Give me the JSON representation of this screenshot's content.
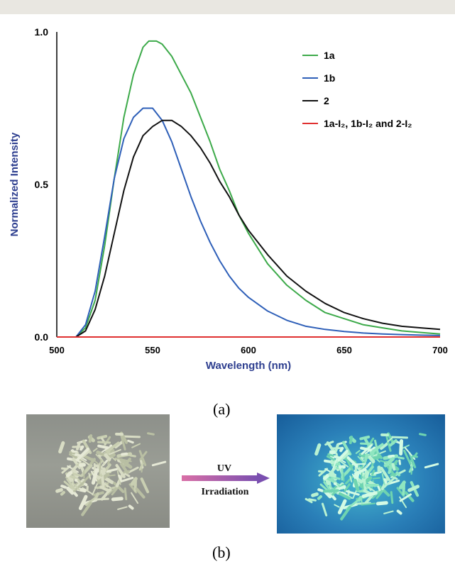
{
  "chart_data": {
    "type": "line",
    "xlabel": "Wavelength (nm)",
    "ylabel": "Normalized Intensity",
    "xlim": [
      500,
      700
    ],
    "ylim": [
      0,
      1.0
    ],
    "x_ticks": [
      "500",
      "550",
      "600",
      "650",
      "700"
    ],
    "y_ticks": [
      "0.0",
      "0.5",
      "1.0"
    ],
    "legend_position": "top-right",
    "grid": false,
    "series": [
      {
        "name": "1a",
        "color": "#3daa4a",
        "x": [
          510,
          515,
          520,
          525,
          530,
          535,
          540,
          545,
          548,
          550,
          552,
          555,
          560,
          565,
          570,
          575,
          580,
          585,
          590,
          595,
          600,
          610,
          620,
          630,
          640,
          650,
          660,
          670,
          680,
          690,
          700
        ],
        "y": [
          0.0,
          0.03,
          0.12,
          0.3,
          0.52,
          0.72,
          0.86,
          0.95,
          0.97,
          0.97,
          0.97,
          0.96,
          0.92,
          0.86,
          0.8,
          0.72,
          0.64,
          0.55,
          0.48,
          0.4,
          0.34,
          0.24,
          0.17,
          0.12,
          0.08,
          0.06,
          0.04,
          0.03,
          0.02,
          0.015,
          0.01
        ]
      },
      {
        "name": "1b",
        "color": "#2e5fb8",
        "x": [
          510,
          515,
          520,
          525,
          530,
          535,
          540,
          545,
          548,
          550,
          555,
          560,
          565,
          570,
          575,
          580,
          585,
          590,
          595,
          600,
          610,
          620,
          630,
          640,
          650,
          660,
          670,
          680,
          690,
          700
        ],
        "y": [
          0.0,
          0.04,
          0.15,
          0.33,
          0.52,
          0.65,
          0.72,
          0.75,
          0.75,
          0.75,
          0.71,
          0.64,
          0.55,
          0.46,
          0.38,
          0.31,
          0.25,
          0.2,
          0.16,
          0.13,
          0.085,
          0.055,
          0.035,
          0.025,
          0.018,
          0.013,
          0.01,
          0.008,
          0.006,
          0.005
        ]
      },
      {
        "name": "2",
        "color": "#111111",
        "x": [
          510,
          515,
          520,
          525,
          530,
          535,
          540,
          545,
          550,
          555,
          558,
          560,
          565,
          570,
          575,
          580,
          585,
          590,
          595,
          600,
          610,
          620,
          630,
          640,
          650,
          660,
          670,
          680,
          690,
          700
        ],
        "y": [
          0.0,
          0.02,
          0.09,
          0.2,
          0.34,
          0.48,
          0.59,
          0.66,
          0.69,
          0.71,
          0.71,
          0.71,
          0.69,
          0.66,
          0.62,
          0.57,
          0.51,
          0.46,
          0.4,
          0.35,
          0.27,
          0.2,
          0.15,
          0.11,
          0.08,
          0.06,
          0.045,
          0.035,
          0.03,
          0.025
        ]
      },
      {
        "name": "1a-I₂, 1b-I₂ and 2-I₂",
        "color": "#e03030",
        "x": [
          500,
          700
        ],
        "y": [
          0,
          0
        ]
      }
    ]
  },
  "captions": {
    "a": "(a)",
    "b": "(b)"
  },
  "uv_arrow": {
    "line1": "UV",
    "line2": "Irradiation"
  }
}
